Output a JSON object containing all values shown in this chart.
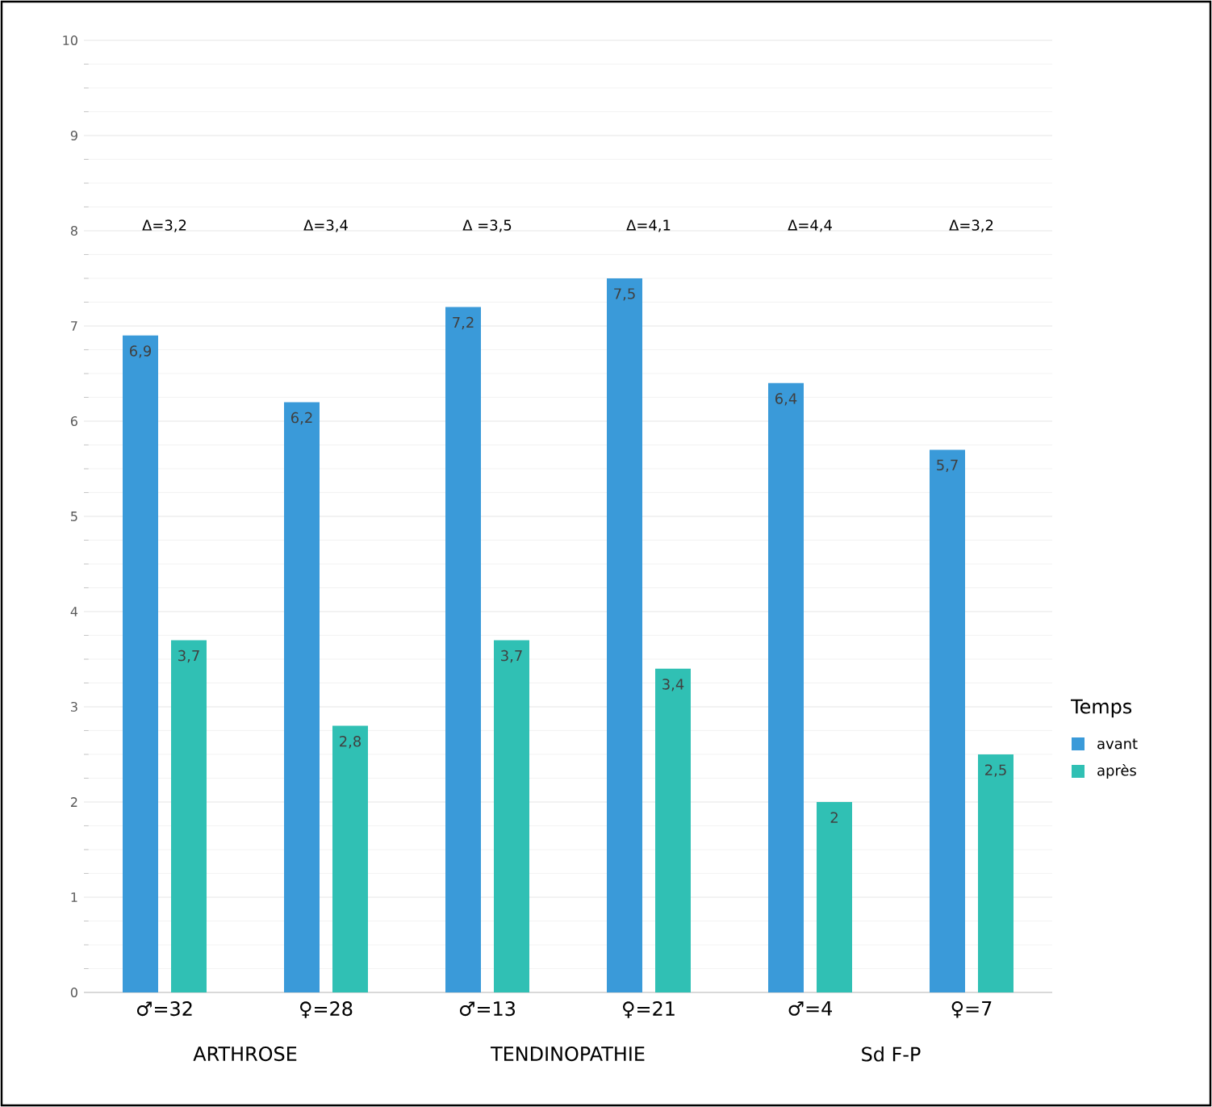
{
  "chart_data": {
    "type": "bar",
    "categories": [
      "♂=32",
      "♀=28",
      "♂=13",
      "♀=21",
      "♂=4",
      "♀=7"
    ],
    "series": [
      {
        "name": "avant",
        "color": "#3a9ad9",
        "values": [
          6.9,
          6.2,
          7.2,
          7.5,
          6.4,
          5.7
        ],
        "value_labels": [
          "6,9",
          "6,2",
          "7,2",
          "7,5",
          "6,4",
          "5,7"
        ]
      },
      {
        "name": "après",
        "color": "#30c0b4",
        "values": [
          3.7,
          2.8,
          3.7,
          3.4,
          2,
          2.5
        ],
        "value_labels": [
          "3,7",
          "2,8",
          "3,7",
          "3,4",
          "2",
          "2,5"
        ]
      }
    ],
    "ylim": [
      0,
      10
    ],
    "yticks": [
      0,
      1,
      2,
      3,
      4,
      5,
      6,
      7,
      8,
      9,
      10
    ],
    "grid": "y",
    "legend": "right",
    "legend_title": "Temps",
    "annotations": [
      "Δ=3,2",
      "Δ=3,4",
      "Δ =3,5",
      "Δ=4,1",
      "Δ=4,4",
      "Δ=3,2",
      "ARTHROSE",
      "TENDINOPATHIE",
      "Sd F-P"
    ]
  }
}
